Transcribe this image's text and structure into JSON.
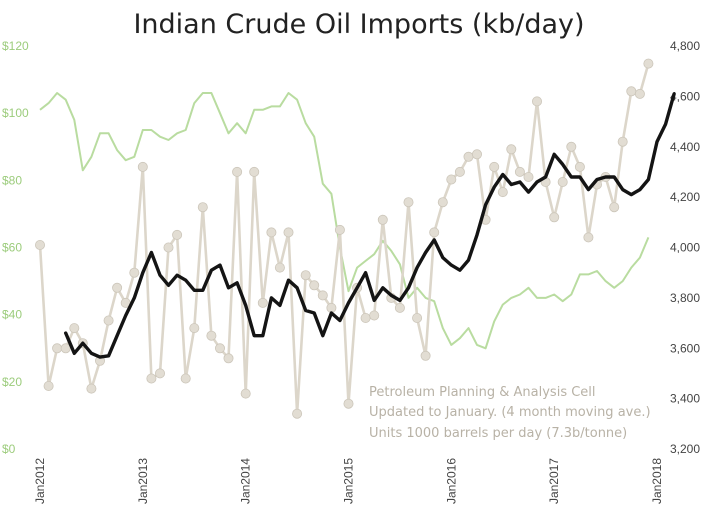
{
  "chart_data": {
    "type": "line",
    "title": "Indian Crude Oil Imports (kb/day)",
    "notes": [
      "Petroleum  Planning & Analysis Cell",
      "Updated to January. (4 month  moving ave.)",
      "Units 1000 barrels per day (7.3b/tonne)"
    ],
    "x_labels": [
      "Jan2012",
      "Jan2013",
      "Jan2014",
      "Jan2015",
      "Jan2016",
      "Jan2017",
      "Jan2018"
    ],
    "x_range": [
      0,
      72
    ],
    "y_left": {
      "ticks": [
        "$0",
        "$20",
        "$40",
        "$60",
        "$80",
        "$100",
        "$120"
      ],
      "range": [
        0,
        120
      ]
    },
    "y_right": {
      "ticks": [
        "3,200",
        "3,400",
        "3,600",
        "3,800",
        "4,000",
        "4,200",
        "4,400",
        "4,600",
        "4,800"
      ],
      "range": [
        3200,
        4800
      ]
    },
    "grid": false,
    "colors": {
      "price": "#b9dca0",
      "monthly": "#dcd6ca",
      "marker": "#e2ddd3",
      "average": "#141414",
      "left_axis": "#9ccc7c"
    },
    "series": [
      {
        "axis": "left",
        "start_index": 0,
        "values": [
          101,
          103,
          106,
          104,
          98,
          83,
          87,
          94,
          94,
          89,
          86,
          87,
          95,
          95,
          93,
          92,
          94,
          95,
          103,
          106,
          106,
          100,
          94,
          97,
          94,
          101,
          101,
          102,
          102,
          106,
          104,
          97,
          93,
          79,
          76,
          60,
          47,
          54,
          56,
          58,
          62,
          59,
          55,
          45,
          48,
          45,
          44,
          36,
          31,
          33,
          36,
          31,
          30,
          38,
          43,
          45,
          46,
          48,
          45,
          45,
          46,
          44,
          46,
          52,
          52,
          53,
          50,
          48,
          50,
          54,
          57,
          63
        ]
      },
      {
        "axis": "right",
        "start_index": 0,
        "values": [
          4010,
          3450,
          3600,
          3600,
          3680,
          3620,
          3440,
          3550,
          3710,
          3840,
          3780,
          3900,
          4320,
          3480,
          3500,
          4000,
          4050,
          3480,
          3680,
          4160,
          3650,
          3600,
          3560,
          4300,
          3420,
          4300,
          3780,
          4060,
          3920,
          4060,
          3340,
          3890,
          3850,
          3810,
          3760,
          4070,
          3380,
          3840,
          3720,
          3730,
          4110,
          3800,
          3760,
          4180,
          3720,
          3570,
          4060,
          4180,
          4270,
          4300,
          4360,
          4370,
          4110,
          4320,
          4220,
          4390,
          4300,
          4280,
          4580,
          4260,
          4120,
          4260,
          4400,
          4320,
          4040,
          4250,
          4280,
          4160,
          4420,
          4620,
          4610,
          4730
        ]
      },
      {
        "axis": "right",
        "start_index": 3,
        "values": [
          3660,
          3580,
          3620,
          3580,
          3565,
          3570,
          3650,
          3730,
          3800,
          3900,
          3980,
          3890,
          3850,
          3890,
          3870,
          3830,
          3830,
          3910,
          3930,
          3840,
          3860,
          3770,
          3650,
          3650,
          3800,
          3770,
          3870,
          3840,
          3750,
          3740,
          3650,
          3740,
          3710,
          3780,
          3840,
          3900,
          3790,
          3840,
          3810,
          3790,
          3840,
          3920,
          3980,
          4030,
          3960,
          3930,
          3910,
          3950,
          4050,
          4170,
          4240,
          4290,
          4250,
          4260,
          4220,
          4260,
          4280,
          4370,
          4330,
          4280,
          4280,
          4230,
          4270,
          4280,
          4280,
          4230,
          4210,
          4230,
          4270,
          4420,
          4490,
          4610
        ]
      }
    ]
  }
}
